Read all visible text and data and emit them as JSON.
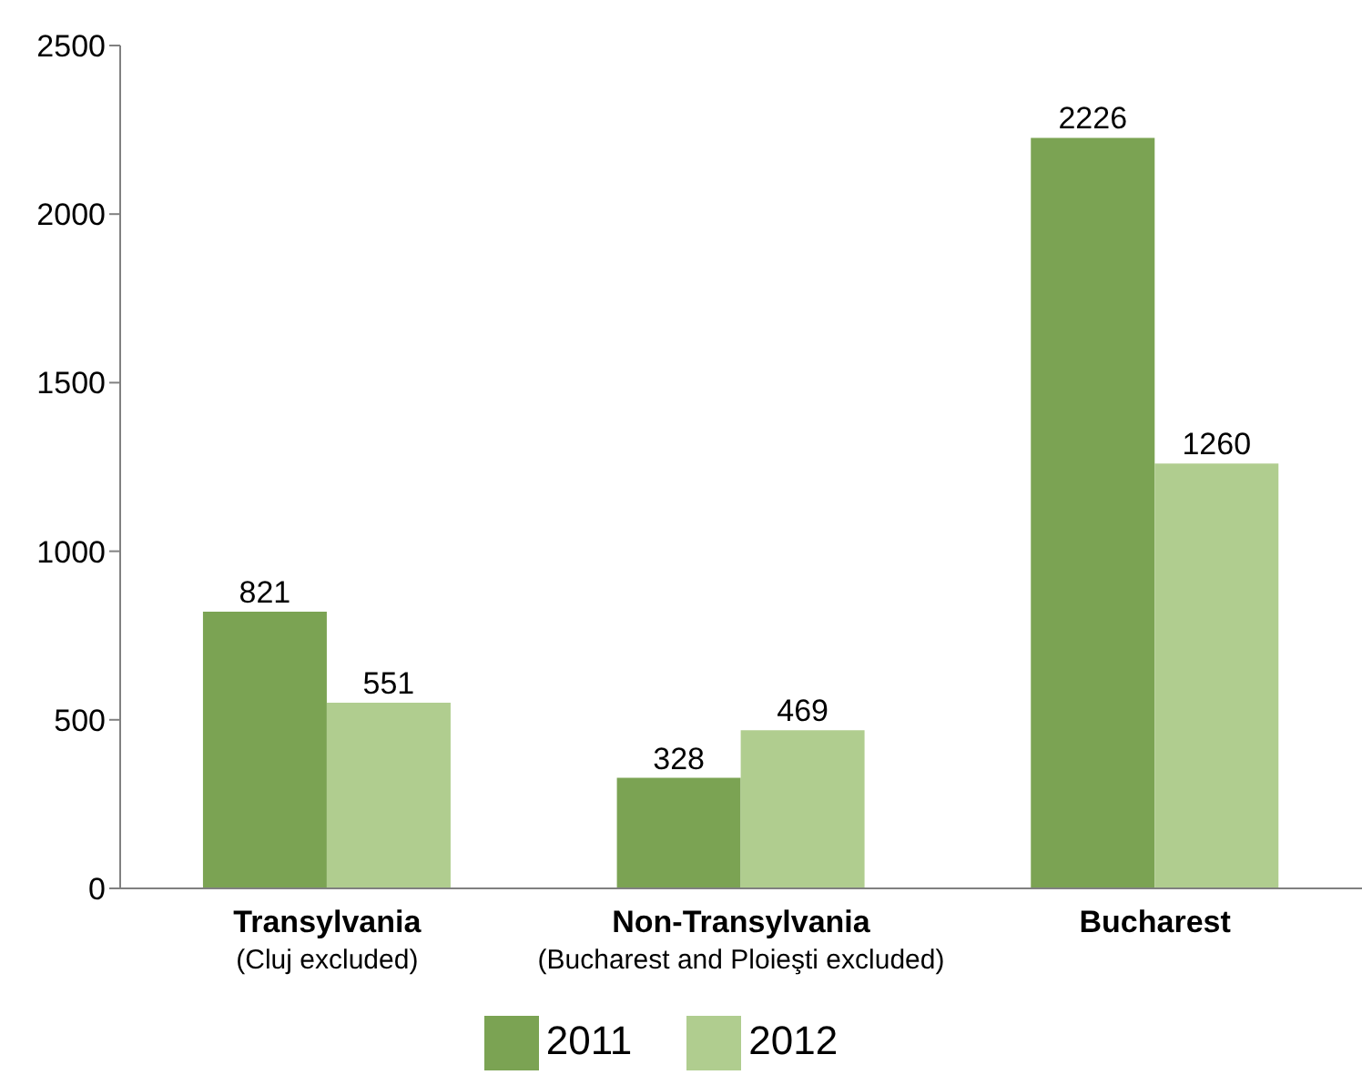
{
  "chart_data": {
    "type": "bar",
    "categories": [
      "Transylvania\n(Cluj excluded)",
      "Non-Transylvania\n(Bucharest and Ploieşti excluded)",
      "Bucharest"
    ],
    "series": [
      {
        "name": "2011",
        "color": "#7ba353",
        "values": [
          821,
          328,
          2226
        ]
      },
      {
        "name": "2012",
        "color": "#b0cd8f",
        "values": [
          551,
          469,
          1260
        ]
      }
    ],
    "ylim": [
      0,
      2500
    ],
    "yticks": [
      0,
      500,
      1000,
      1500,
      2000,
      2500
    ],
    "data_labels": true,
    "legend": "bottom",
    "grid": false
  }
}
